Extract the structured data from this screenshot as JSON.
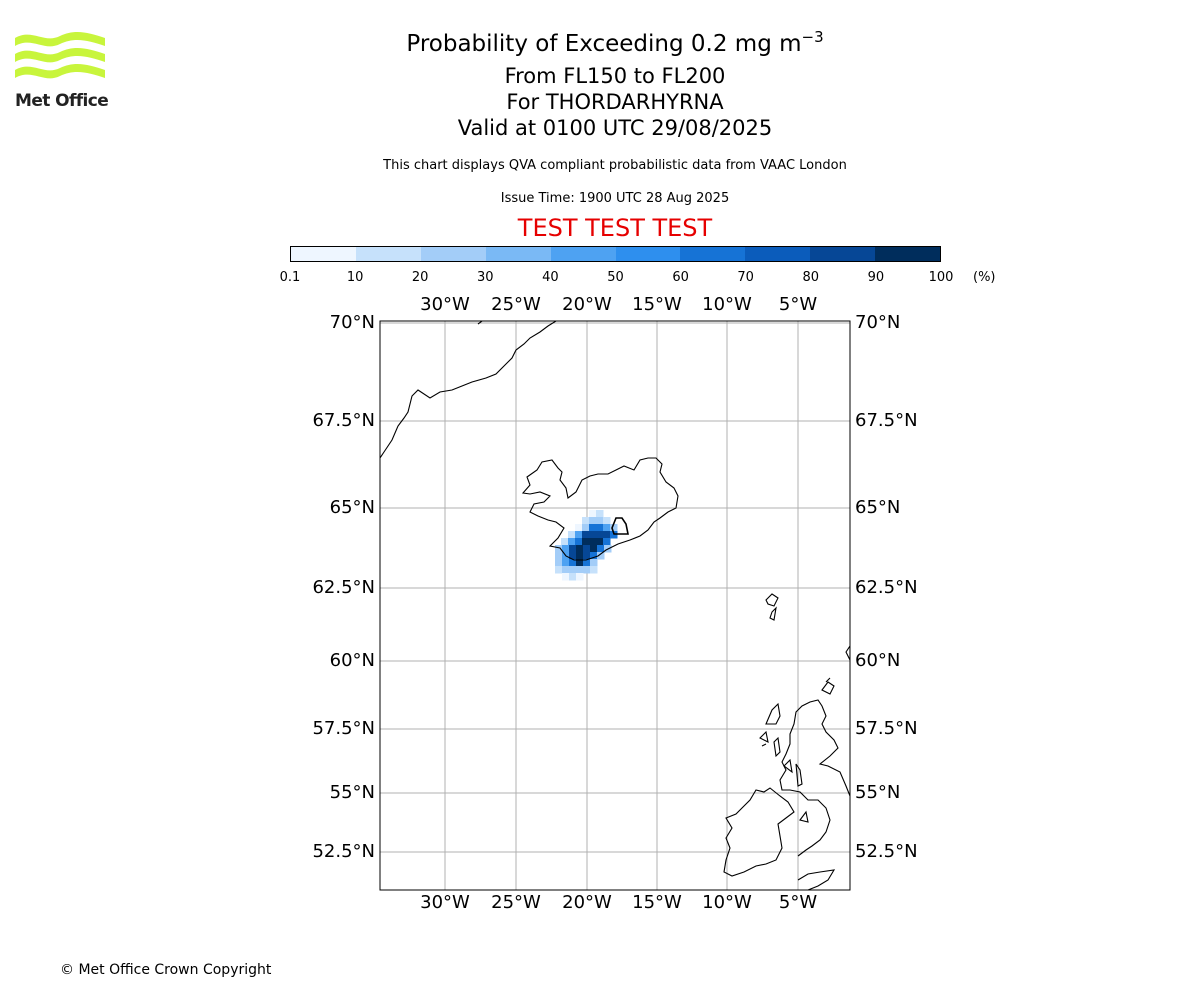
{
  "brand": {
    "name": "Met Office",
    "logo_color": "#c8f53c"
  },
  "title": {
    "main": "Probability of Exceeding 0.2 mg m",
    "exponent": "−3",
    "level": "From FL150 to FL200",
    "volcano": "For THORDARHYRNA",
    "valid": "Valid at 0100 UTC 29/08/2025"
  },
  "note": "This chart displays QVA compliant probabilistic data from VAAC London",
  "issue_time": "Issue Time: 1900 UTC 28 Aug 2025",
  "test_banner": "TEST TEST TEST",
  "colorbar": {
    "unit": "(%)",
    "ticks": [
      "0.1",
      "10",
      "20",
      "30",
      "40",
      "50",
      "60",
      "70",
      "80",
      "90",
      "100"
    ],
    "colors": [
      "#eef6ff",
      "#c6e1fb",
      "#a3cdf8",
      "#7ab9f5",
      "#4ea2f2",
      "#2e8fee",
      "#1673d6",
      "#0b5cbb",
      "#064796",
      "#002d5c"
    ]
  },
  "map": {
    "lon_labels": [
      "30°W",
      "25°W",
      "20°W",
      "15°W",
      "10°W",
      "5°W"
    ],
    "lat_labels": [
      "70°N",
      "67.5°N",
      "65°N",
      "62.5°N",
      "60°N",
      "57.5°N",
      "55°N",
      "52.5°N"
    ],
    "grid": true,
    "plume_levels_percent": [
      5,
      15,
      25,
      45,
      65,
      85,
      95
    ]
  },
  "copyright": "© Met Office Crown Copyright"
}
